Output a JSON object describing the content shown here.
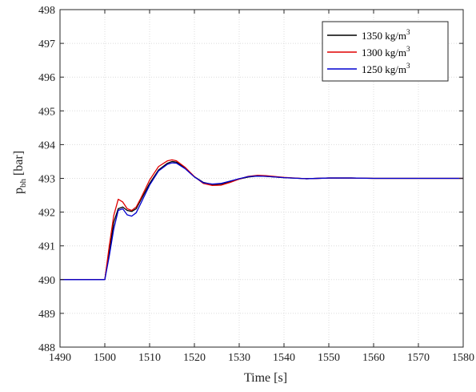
{
  "chart_data": {
    "type": "line",
    "xlabel": "Time [s]",
    "ylabel_main": "p",
    "ylabel_sub": "bh",
    "ylabel_unit": " [bar]",
    "xlim": [
      1490,
      1580
    ],
    "ylim": [
      488,
      498
    ],
    "xticks": [
      1490,
      1500,
      1510,
      1520,
      1530,
      1540,
      1550,
      1560,
      1570,
      1580
    ],
    "yticks": [
      488,
      489,
      490,
      491,
      492,
      493,
      494,
      495,
      496,
      497,
      498
    ],
    "grid": true,
    "legend_position": "top-right",
    "legend_unit": "kg/m",
    "legend_sup": "3",
    "series": [
      {
        "name": "1350",
        "color": "#000000",
        "x": [
          1490,
          1500,
          1501,
          1502,
          1503,
          1504,
          1505,
          1506,
          1507,
          1508,
          1510,
          1512,
          1514,
          1515,
          1516,
          1518,
          1520,
          1522,
          1524,
          1526,
          1528,
          1530,
          1532,
          1534,
          1536,
          1540,
          1545,
          1550,
          1555,
          1560,
          1565,
          1570,
          1575,
          1580
        ],
        "y": [
          490,
          490,
          490.8,
          491.7,
          492.1,
          492.15,
          492.05,
          492.02,
          492.1,
          492.35,
          492.85,
          493.25,
          493.45,
          493.5,
          493.48,
          493.3,
          493.05,
          492.88,
          492.82,
          492.83,
          492.9,
          492.98,
          493.04,
          493.07,
          493.06,
          493.02,
          492.99,
          493.01,
          493.01,
          493.0,
          493.0,
          493.0,
          493.0,
          493.0
        ]
      },
      {
        "name": "1300",
        "color": "#e00000",
        "x": [
          1490,
          1500,
          1501,
          1502,
          1503,
          1504,
          1505,
          1506,
          1507,
          1508,
          1510,
          1512,
          1514,
          1515,
          1516,
          1518,
          1520,
          1522,
          1524,
          1526,
          1528,
          1530,
          1532,
          1534,
          1536,
          1540,
          1545,
          1550,
          1555,
          1560,
          1565,
          1570,
          1575,
          1580
        ],
        "y": [
          490,
          490,
          491.0,
          491.9,
          492.38,
          492.3,
          492.1,
          492.05,
          492.15,
          492.4,
          492.95,
          493.35,
          493.52,
          493.55,
          493.52,
          493.32,
          493.05,
          492.85,
          492.79,
          492.8,
          492.88,
          492.98,
          493.06,
          493.09,
          493.08,
          493.03,
          492.99,
          493.01,
          493.01,
          493.0,
          493.0,
          493.0,
          493.0,
          493.0
        ]
      },
      {
        "name": "1250",
        "color": "#0000d0",
        "x": [
          1490,
          1500,
          1501,
          1502,
          1503,
          1504,
          1505,
          1506,
          1507,
          1508,
          1510,
          1512,
          1514,
          1515,
          1516,
          1518,
          1520,
          1522,
          1524,
          1526,
          1528,
          1530,
          1532,
          1534,
          1536,
          1540,
          1545,
          1550,
          1555,
          1560,
          1565,
          1570,
          1575,
          1580
        ],
        "y": [
          490,
          490,
          490.7,
          491.5,
          492.05,
          492.1,
          491.92,
          491.88,
          491.98,
          492.25,
          492.8,
          493.22,
          493.42,
          493.46,
          493.45,
          493.28,
          493.04,
          492.87,
          492.83,
          492.85,
          492.92,
          492.99,
          493.05,
          493.07,
          493.06,
          493.02,
          492.99,
          493.01,
          493.01,
          493.0,
          493.0,
          493.0,
          493.0,
          493.0
        ]
      }
    ]
  }
}
